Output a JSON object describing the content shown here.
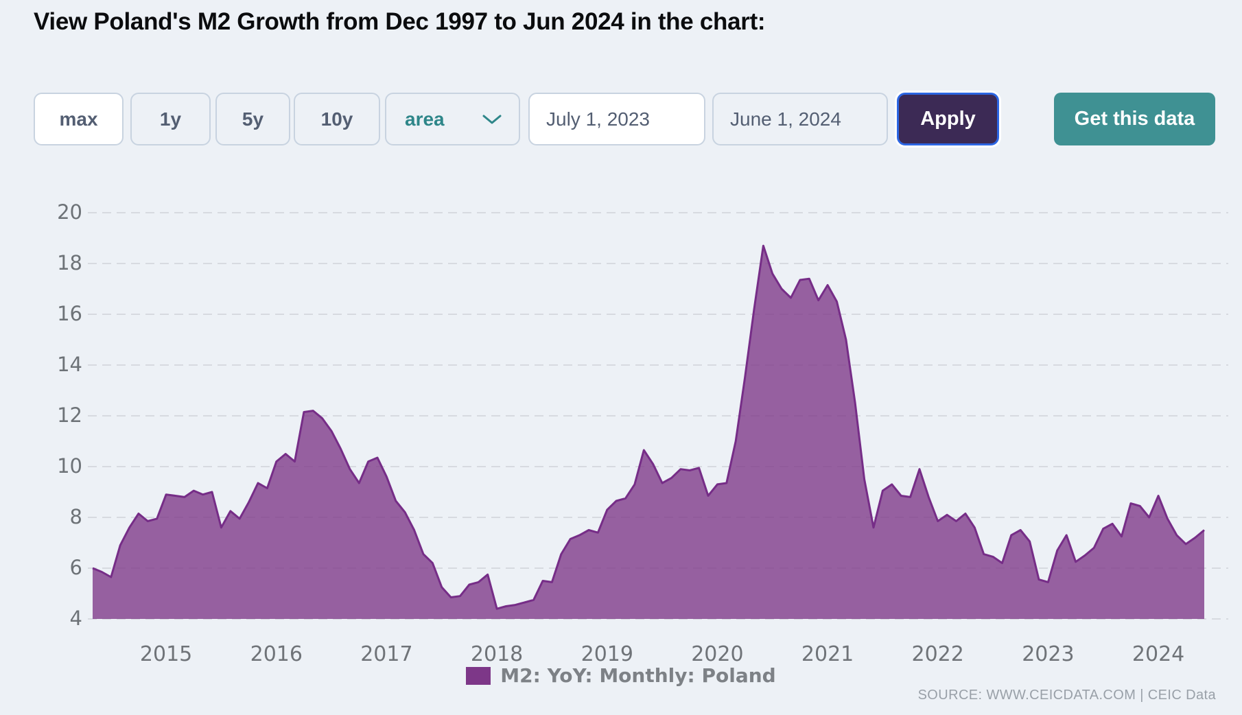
{
  "title": "View Poland's M2 Growth from Dec 1997 to Jun 2024 in the chart:",
  "toolbar": {
    "range_buttons": [
      {
        "label": "max",
        "selected": true
      },
      {
        "label": "1y",
        "selected": false
      },
      {
        "label": "5y",
        "selected": false
      },
      {
        "label": "10y",
        "selected": false
      }
    ],
    "chart_type_select": {
      "value": "area"
    },
    "date_from": "July 1, 2023",
    "date_to": "June 1, 2024",
    "apply_label": "Apply",
    "get_data_label": "Get this data"
  },
  "chart_data": {
    "type": "area",
    "series": [
      {
        "name": "M2: YoY: Monthly: Poland",
        "start_month": "2014-05",
        "end_month": "2024-06",
        "monthly_values": [
          6.0,
          5.85,
          5.65,
          6.9,
          7.6,
          8.15,
          7.85,
          7.95,
          8.9,
          8.85,
          8.8,
          9.05,
          8.9,
          9.0,
          7.6,
          8.25,
          7.95,
          8.6,
          9.35,
          9.15,
          10.2,
          10.5,
          10.2,
          12.15,
          12.2,
          11.9,
          11.4,
          10.7,
          9.9,
          9.35,
          10.2,
          10.35,
          9.6,
          8.65,
          8.2,
          7.5,
          6.55,
          6.2,
          5.25,
          4.85,
          4.9,
          5.35,
          5.45,
          5.75,
          4.4,
          4.5,
          4.55,
          4.65,
          4.75,
          5.5,
          5.45,
          6.55,
          7.15,
          7.3,
          7.5,
          7.4,
          8.3,
          8.65,
          8.75,
          9.3,
          10.65,
          10.1,
          9.35,
          9.55,
          9.9,
          9.85,
          9.95,
          8.85,
          9.3,
          9.35,
          11.0,
          13.5,
          16.2,
          18.7,
          17.6,
          17.0,
          16.65,
          17.35,
          17.4,
          16.55,
          17.15,
          16.5,
          15.0,
          12.5,
          9.5,
          7.6,
          9.05,
          9.3,
          8.85,
          8.8,
          9.9,
          8.8,
          7.85,
          8.1,
          7.85,
          8.15,
          7.6,
          6.55,
          6.45,
          6.2,
          7.3,
          7.5,
          7.05,
          5.55,
          5.45,
          6.7,
          7.3,
          6.25,
          6.5,
          6.8,
          7.55,
          7.75,
          7.25,
          8.55,
          8.45,
          8.0,
          8.85,
          7.95,
          7.3,
          6.95,
          7.2,
          7.5
        ]
      }
    ],
    "ylim": [
      4,
      20
    ],
    "yticks": [
      4,
      6,
      8,
      10,
      12,
      14,
      16,
      18,
      20
    ],
    "xticks": [
      2015,
      2016,
      2017,
      2018,
      2019,
      2020,
      2021,
      2022,
      2023,
      2024
    ],
    "grid": true,
    "legend_position": "bottom",
    "colors": {
      "area_fill": "#7d3788",
      "area_fill_opacity": 0.78,
      "area_stroke": "#762d87",
      "legend_swatch": "#7d3788"
    }
  },
  "legend": {
    "label": "M2: YoY: Monthly: Poland"
  },
  "source": "SOURCE: WWW.CEICDATA.COM | CEIC Data",
  "ui_colors": {
    "apply_bg": "#3c2a55",
    "apply_focus_ring": "#2c66e3",
    "get_data_bg": "#3f9193",
    "select_text": "#2e8689"
  }
}
